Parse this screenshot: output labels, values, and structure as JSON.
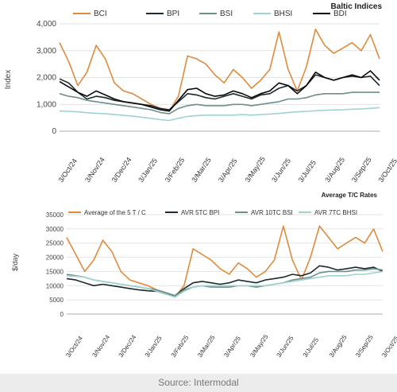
{
  "source": "Source: Intermodal",
  "colors": {
    "BCI": "#e08a3c",
    "BPI": "#1e2a30",
    "BSI": "#6f8f8a",
    "BHSI": "#9fd3d1",
    "BDI": "#0a0a0a"
  },
  "chart_data": [
    {
      "type": "line",
      "title": "Baltic Indices",
      "xlabel": "",
      "ylabel": "Index",
      "ylim": [
        0,
        4000
      ],
      "yticks": [
        "0",
        "1,000",
        "2,000",
        "3,000",
        "4,000"
      ],
      "xticks": [
        "3/Oct/24",
        "3/Nov/24",
        "3/Dec/24",
        "3/Jan/25",
        "3/Feb/25",
        "3/Mar/25",
        "3/Apr/25",
        "3/May/25",
        "3/Jun/25",
        "3/Jul/25",
        "3/Aug/25",
        "3/Sep/25",
        "3/Oct/25"
      ],
      "grid": true,
      "legend": "top",
      "x_start": "3/Oct/24",
      "x_step": "half-month",
      "series": [
        {
          "name": "BCI",
          "color": "#e08a3c",
          "values": [
            3300,
            2600,
            1700,
            2200,
            3200,
            2700,
            1800,
            1500,
            1400,
            1200,
            1000,
            850,
            750,
            1300,
            2800,
            2700,
            2500,
            2100,
            1800,
            2300,
            2000,
            1600,
            1900,
            2300,
            3700,
            2300,
            1500,
            2400,
            3800,
            3200,
            2900,
            3100,
            3300,
            3000,
            3600,
            2700
          ]
        },
        {
          "name": "BPI",
          "color": "#1e2a30",
          "values": [
            1950,
            1800,
            1450,
            1200,
            1300,
            1250,
            1150,
            1100,
            1050,
            1000,
            950,
            850,
            800,
            1100,
            1400,
            1350,
            1250,
            1200,
            1300,
            1400,
            1300,
            1200,
            1350,
            1400,
            1600,
            1700,
            1500,
            1700,
            2100,
            2000,
            1900,
            2000,
            2050,
            2000,
            2050,
            1700
          ]
        },
        {
          "name": "BSI",
          "color": "#6f8f8a",
          "values": [
            1400,
            1300,
            1250,
            1150,
            1100,
            1050,
            1000,
            950,
            900,
            850,
            800,
            700,
            650,
            850,
            950,
            1000,
            950,
            950,
            950,
            1000,
            1000,
            950,
            1000,
            1050,
            1100,
            1200,
            1200,
            1250,
            1350,
            1400,
            1400,
            1400,
            1450,
            1450,
            1450,
            1450
          ]
        },
        {
          "name": "BHSI",
          "color": "#9fd3d1",
          "values": [
            750,
            740,
            720,
            690,
            670,
            650,
            620,
            590,
            560,
            520,
            480,
            430,
            400,
            480,
            550,
            580,
            600,
            600,
            600,
            600,
            620,
            600,
            620,
            640,
            660,
            700,
            720,
            740,
            760,
            780,
            790,
            800,
            820,
            830,
            850,
            880
          ]
        },
        {
          "name": "BDI",
          "color": "#0a0a0a",
          "values": [
            1850,
            1650,
            1450,
            1300,
            1500,
            1350,
            1200,
            1100,
            1050,
            1000,
            900,
            800,
            750,
            1150,
            1550,
            1600,
            1400,
            1300,
            1350,
            1500,
            1400,
            1250,
            1400,
            1500,
            1800,
            1700,
            1400,
            1700,
            2200,
            2000,
            1900,
            2000,
            2100,
            2000,
            2250,
            1900
          ]
        }
      ]
    },
    {
      "type": "line",
      "title": "Average T/C Rates",
      "xlabel": "",
      "ylabel": "$/day",
      "ylim": [
        0,
        35000
      ],
      "yticks": [
        "0",
        "5000",
        "10000",
        "15000",
        "20000",
        "25000",
        "30000",
        "35000"
      ],
      "xticks": [
        "3/Oct/24",
        "3/Nov/24",
        "3/Dec/24",
        "3/Jan/25",
        "3/Feb/25",
        "3/Mar/25",
        "3/Apr/25",
        "3/May/25",
        "3/Jun/25",
        "3/Jul/25",
        "3/Aug/25",
        "3/Sep/25",
        "3/Oct/25"
      ],
      "grid": true,
      "legend": "top",
      "x_start": "3/Oct/24",
      "x_step": "half-month",
      "series": [
        {
          "name": "Average of the 5 T / C",
          "color": "#e08a3c",
          "values": [
            27000,
            21000,
            15000,
            19000,
            26000,
            22000,
            15000,
            12000,
            11000,
            10000,
            8500,
            7500,
            6000,
            10000,
            23000,
            21000,
            19000,
            16000,
            14000,
            18000,
            16000,
            13000,
            15000,
            19000,
            31000,
            19000,
            12000,
            20000,
            31000,
            27000,
            23000,
            25000,
            27000,
            25000,
            30000,
            22000
          ]
        },
        {
          "name": "AVR 5TC BPI",
          "color": "#1e2a30",
          "values": [
            12500,
            12000,
            11000,
            10000,
            10500,
            10000,
            9500,
            9000,
            8500,
            8200,
            8000,
            7000,
            6500,
            9000,
            11000,
            11500,
            11000,
            10500,
            11000,
            12000,
            11500,
            11000,
            12000,
            12500,
            13000,
            14000,
            13500,
            14500,
            17000,
            16500,
            15500,
            16000,
            16500,
            16000,
            16500,
            15000
          ]
        },
        {
          "name": "AVR 10TC BSI",
          "color": "#6f8f8a",
          "values": [
            14000,
            13500,
            13000,
            12000,
            11500,
            11000,
            10500,
            10000,
            9500,
            9000,
            8500,
            7500,
            6500,
            8500,
            9500,
            10000,
            9500,
            9500,
            9500,
            10000,
            10000,
            9500,
            10000,
            10500,
            11000,
            12000,
            12500,
            13000,
            14500,
            15000,
            15000,
            15000,
            15500,
            15500,
            16000,
            15500
          ]
        },
        {
          "name": "AVR 7TC BHSI",
          "color": "#9fd3d1",
          "values": [
            13500,
            13300,
            13000,
            12000,
            11500,
            11000,
            10500,
            10000,
            9500,
            9000,
            8000,
            7000,
            6000,
            8000,
            9500,
            10000,
            10000,
            10000,
            10000,
            10000,
            10000,
            10000,
            10000,
            10500,
            11000,
            11500,
            12000,
            12500,
            13000,
            13500,
            13500,
            13500,
            14000,
            14000,
            14500,
            15000
          ]
        }
      ]
    }
  ]
}
